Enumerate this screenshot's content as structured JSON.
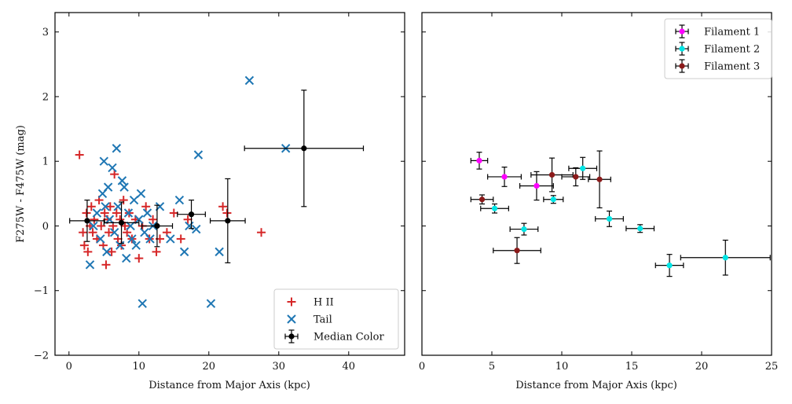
{
  "chart_data": [
    {
      "type": "scatter",
      "xlabel": "Distance from Major Axis (kpc)",
      "ylabel": "F275W - F475W (mag)",
      "xlim": [
        -2,
        48
      ],
      "ylim": [
        -2,
        3.3
      ],
      "xticks": [
        "0",
        "10",
        "20",
        "30",
        "40"
      ],
      "yticks": [
        "−2",
        "−1",
        "0",
        "1",
        "2",
        "3"
      ],
      "xtick_values": [
        0,
        10,
        20,
        30,
        40
      ],
      "ytick_values": [
        -2,
        -1,
        0,
        1,
        2,
        3
      ],
      "legend_position": "lower-right",
      "series": [
        {
          "name": "H II",
          "color": "#d62728",
          "marker": "plus",
          "points": [
            [
              1.5,
              1.1
            ],
            [
              2.0,
              -0.1
            ],
            [
              2.2,
              -0.3
            ],
            [
              2.5,
              0.2
            ],
            [
              2.7,
              -0.4
            ],
            [
              3.0,
              0.0
            ],
            [
              3.2,
              0.3
            ],
            [
              3.4,
              -0.1
            ],
            [
              3.6,
              0.1
            ],
            [
              4.0,
              -0.2
            ],
            [
              4.3,
              0.4
            ],
            [
              4.6,
              0.0
            ],
            [
              4.9,
              -0.3
            ],
            [
              5.1,
              0.2
            ],
            [
              5.3,
              -0.6
            ],
            [
              5.5,
              0.1
            ],
            [
              5.7,
              -0.1
            ],
            [
              5.9,
              0.3
            ],
            [
              6.1,
              -0.4
            ],
            [
              6.3,
              0.0
            ],
            [
              6.5,
              0.8
            ],
            [
              6.8,
              0.2
            ],
            [
              7.0,
              -0.2
            ],
            [
              7.3,
              0.1
            ],
            [
              7.5,
              -0.3
            ],
            [
              7.8,
              0.4
            ],
            [
              8.0,
              0.0
            ],
            [
              8.3,
              -0.1
            ],
            [
              8.6,
              0.2
            ],
            [
              9.0,
              -0.2
            ],
            [
              9.5,
              0.1
            ],
            [
              10.0,
              -0.5
            ],
            [
              10.5,
              0.0
            ],
            [
              11.0,
              0.3
            ],
            [
              11.5,
              -0.2
            ],
            [
              12.0,
              0.1
            ],
            [
              12.5,
              -0.4
            ],
            [
              13.0,
              -0.2
            ],
            [
              14.0,
              -0.1
            ],
            [
              15.0,
              0.2
            ],
            [
              16.0,
              -0.2
            ],
            [
              17.0,
              0.1
            ],
            [
              22.0,
              0.3
            ],
            [
              22.6,
              0.2
            ],
            [
              27.5,
              -0.1
            ]
          ]
        },
        {
          "name": "Tail",
          "color": "#1f77b4",
          "marker": "x",
          "points": [
            [
              3.0,
              -0.6
            ],
            [
              3.5,
              0.0
            ],
            [
              4.0,
              0.2
            ],
            [
              4.5,
              -0.2
            ],
            [
              4.8,
              0.5
            ],
            [
              5.0,
              1.0
            ],
            [
              5.2,
              0.3
            ],
            [
              5.4,
              -0.4
            ],
            [
              5.6,
              0.6
            ],
            [
              5.8,
              0.1
            ],
            [
              6.2,
              0.9
            ],
            [
              6.5,
              -0.1
            ],
            [
              6.8,
              1.2
            ],
            [
              7.0,
              0.3
            ],
            [
              7.3,
              -0.3
            ],
            [
              7.6,
              0.7
            ],
            [
              7.9,
              0.6
            ],
            [
              8.2,
              -0.5
            ],
            [
              8.5,
              0.2
            ],
            [
              8.8,
              0.0
            ],
            [
              9.0,
              -0.2
            ],
            [
              9.3,
              0.4
            ],
            [
              9.6,
              -0.3
            ],
            [
              10.0,
              0.1
            ],
            [
              10.3,
              0.5
            ],
            [
              10.5,
              -1.2
            ],
            [
              10.8,
              -0.1
            ],
            [
              11.2,
              0.2
            ],
            [
              11.6,
              -0.2
            ],
            [
              12.0,
              0.0
            ],
            [
              13.0,
              0.3
            ],
            [
              14.5,
              -0.2
            ],
            [
              15.8,
              0.4
            ],
            [
              16.5,
              -0.4
            ],
            [
              17.2,
              0.0
            ],
            [
              18.5,
              1.1
            ],
            [
              18.2,
              -0.05
            ],
            [
              20.3,
              -1.2
            ],
            [
              21.5,
              -0.4
            ],
            [
              25.8,
              2.25
            ],
            [
              31.0,
              1.2
            ]
          ]
        },
        {
          "name": "Median Color",
          "color": "#000000",
          "marker": "circle-errorbar",
          "points": [
            {
              "x": 2.6,
              "y": 0.08,
              "xerr": 2.5,
              "yerr": 0.32
            },
            {
              "x": 7.5,
              "y": 0.05,
              "xerr": 2.5,
              "yerr": 0.32
            },
            {
              "x": 12.6,
              "y": 0.0,
              "xerr": 2.2,
              "yerr": 0.32
            },
            {
              "x": 17.5,
              "y": 0.18,
              "xerr": 2.0,
              "yerr": 0.22
            },
            {
              "x": 22.7,
              "y": 0.08,
              "xerr": 2.5,
              "yerr": 0.65
            },
            {
              "x": 33.6,
              "y": 1.2,
              "xerr": 8.5,
              "yerr": 0.9
            }
          ]
        }
      ]
    },
    {
      "type": "scatter",
      "xlabel": "Distance from Major Axis (kpc)",
      "ylabel": "",
      "xlim": [
        0,
        25
      ],
      "ylim": [
        -2,
        3.3
      ],
      "xticks": [
        "0",
        "5",
        "10",
        "15",
        "20",
        "25"
      ],
      "xtick_values": [
        0,
        5,
        10,
        15,
        20,
        25
      ],
      "ytick_values": [
        -2,
        -1,
        0,
        1,
        2,
        3
      ],
      "legend_position": "top-right",
      "series": [
        {
          "name": "Filament 1",
          "color": "#ff00ff",
          "marker": "circle-errorbar",
          "points": [
            {
              "x": 4.1,
              "y": 1.01,
              "xerr": 0.6,
              "yerr": 0.13
            },
            {
              "x": 5.9,
              "y": 0.76,
              "xerr": 1.2,
              "yerr": 0.15
            },
            {
              "x": 8.2,
              "y": 0.62,
              "xerr": 1.2,
              "yerr": 0.22
            }
          ]
        },
        {
          "name": "Filament 2",
          "color": "#00e5e5",
          "marker": "circle-errorbar",
          "points": [
            {
              "x": 5.2,
              "y": 0.27,
              "xerr": 1.0,
              "yerr": 0.07
            },
            {
              "x": 7.3,
              "y": -0.05,
              "xerr": 1.0,
              "yerr": 0.09
            },
            {
              "x": 9.4,
              "y": 0.41,
              "xerr": 0.7,
              "yerr": 0.06
            },
            {
              "x": 11.5,
              "y": 0.89,
              "xerr": 1.0,
              "yerr": 0.17
            },
            {
              "x": 13.4,
              "y": 0.11,
              "xerr": 1.0,
              "yerr": 0.12
            },
            {
              "x": 15.6,
              "y": -0.04,
              "xerr": 1.0,
              "yerr": 0.06
            },
            {
              "x": 17.7,
              "y": -0.61,
              "xerr": 1.0,
              "yerr": 0.17
            },
            {
              "x": 21.7,
              "y": -0.49,
              "xerr": 3.2,
              "yerr": 0.27
            }
          ]
        },
        {
          "name": "Filament 3",
          "color": "#8b1a1a",
          "marker": "circle-errorbar",
          "points": [
            {
              "x": 4.3,
              "y": 0.41,
              "xerr": 0.8,
              "yerr": 0.07
            },
            {
              "x": 6.8,
              "y": -0.38,
              "xerr": 1.7,
              "yerr": 0.2
            },
            {
              "x": 9.3,
              "y": 0.79,
              "xerr": 1.5,
              "yerr": 0.26
            },
            {
              "x": 11.0,
              "y": 0.76,
              "xerr": 1.0,
              "yerr": 0.14
            },
            {
              "x": 12.7,
              "y": 0.72,
              "xerr": 0.8,
              "yerr": 0.44
            }
          ]
        }
      ]
    }
  ]
}
